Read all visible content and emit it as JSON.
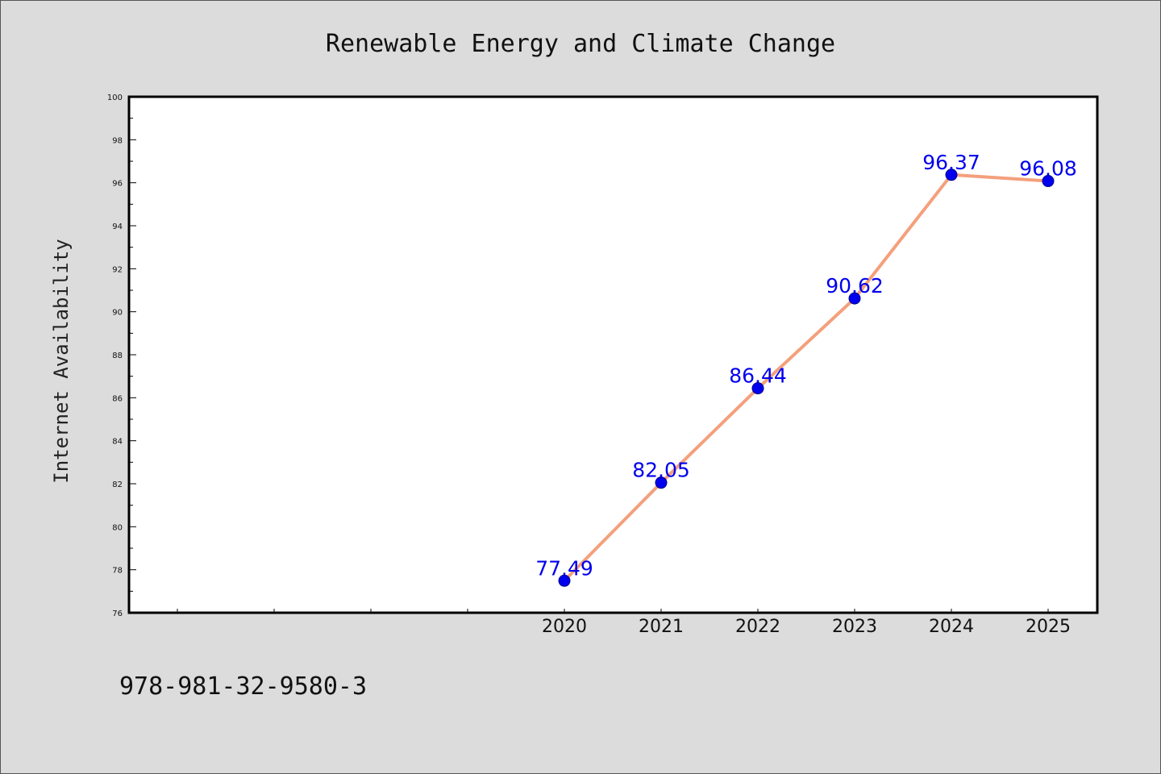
{
  "chart_data": {
    "type": "line",
    "title": "Renewable Energy and Climate Change",
    "xlabel": "",
    "ylabel": "Internet Availability",
    "categories": [
      "2020",
      "2021",
      "2022",
      "2023",
      "2024",
      "2025"
    ],
    "series": [
      {
        "values": [
          77.49,
          82.05,
          86.44,
          90.62,
          96.37,
          96.08
        ],
        "labels": [
          "77.49",
          "82.05",
          "86.44",
          "90.62",
          "96.37",
          "96.08"
        ]
      }
    ],
    "ylim": [
      76,
      100
    ],
    "yticks": [
      "76",
      "78",
      "80",
      "82",
      "84",
      "86",
      "88",
      "90",
      "92",
      "94",
      "96",
      "98",
      "100"
    ],
    "grid": false,
    "legend": "none",
    "colors": {
      "line": "#f4a07c",
      "marker": "#0000ee",
      "marker_edge": "#00008b",
      "data_label": "#0000ee",
      "plot_background": "#ffffff",
      "figure_background": "#dcdcdc",
      "axis": "#000000"
    }
  },
  "footer": {
    "isbn": "978-981-32-9580-3"
  }
}
